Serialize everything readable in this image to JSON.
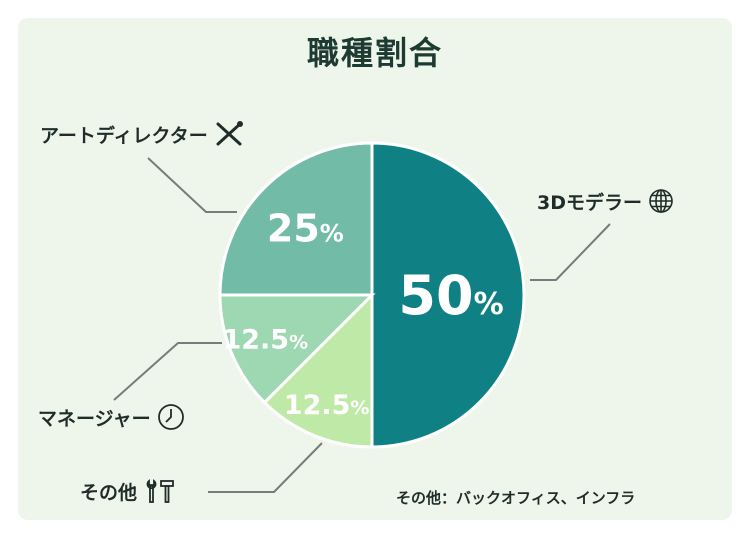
{
  "title": "職種割合",
  "note": "その他：バックオフィス、インフラ",
  "chart_data": {
    "type": "pie",
    "title": "職種割合",
    "slices": [
      {
        "label": "3Dモデラー",
        "value": 50,
        "display": "50",
        "color": "#0f8185",
        "icon": "globe-icon"
      },
      {
        "label": "その他",
        "value": 12.5,
        "display": "12.5",
        "color": "#bfe9a6",
        "icon": "tools-icon"
      },
      {
        "label": "マネージャー",
        "value": 12.5,
        "display": "12.5",
        "color": "#9ed8b2",
        "icon": "clock-icon"
      },
      {
        "label": "アートディレクター",
        "value": 25,
        "display": "25",
        "color": "#72bca7",
        "icon": "crossed-tools-icon"
      }
    ],
    "unit": "%"
  }
}
